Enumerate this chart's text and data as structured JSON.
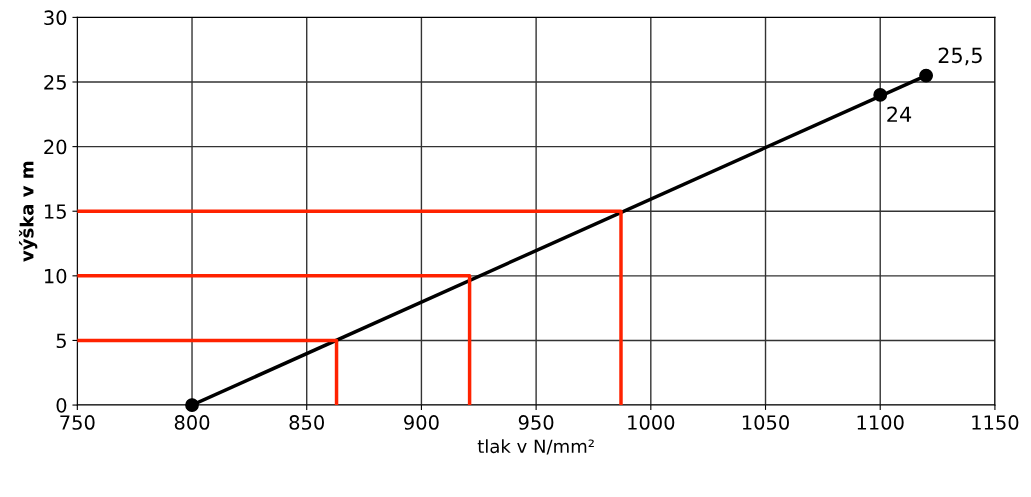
{
  "chart_data": {
    "type": "line",
    "xlabel": "tlak v N/mm²",
    "ylabel": "výška v m",
    "xlim": [
      750,
      1150
    ],
    "xticks": [
      750,
      800,
      850,
      900,
      950,
      1000,
      1050,
      1100,
      1150
    ],
    "ylim": [
      0,
      30
    ],
    "yticks": [
      0,
      5,
      10,
      15,
      20,
      25,
      30
    ],
    "grid": true,
    "series": [
      {
        "color": "#000000",
        "x": [
          800,
          1120
        ],
        "values": [
          0,
          25.5
        ]
      },
      {
        "color": "#ff2200",
        "x": [
          750,
          863,
          863
        ],
        "values": [
          5,
          5,
          0
        ]
      },
      {
        "color": "#ff2200",
        "x": [
          750,
          921,
          921
        ],
        "values": [
          10,
          10,
          0
        ]
      },
      {
        "color": "#ff2200",
        "x": [
          750,
          987,
          987
        ],
        "values": [
          15,
          15,
          0
        ]
      },
      {
        "type": "scatter",
        "color": "#000000",
        "marker": "circle",
        "x": [
          800,
          1100,
          1120
        ],
        "values": [
          0,
          24,
          25.5
        ],
        "value_labels": [
          null,
          "24",
          "25,5"
        ]
      }
    ]
  }
}
